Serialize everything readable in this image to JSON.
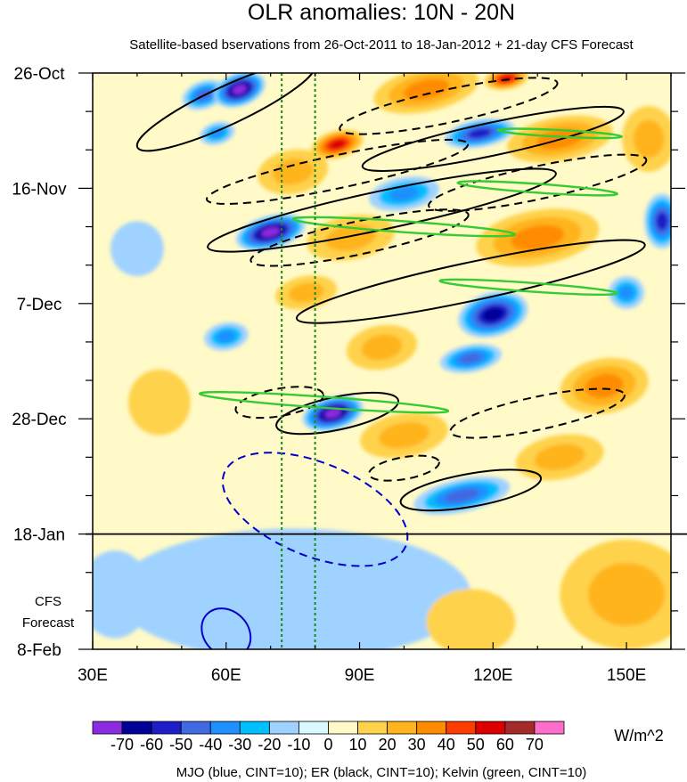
{
  "chart_data": {
    "type": "heatmap",
    "title": "OLR anomalies: 10N - 20N",
    "subtitle": "Satellite-based bservations from 26-Oct-2011 to 18-Jan-2012 + 21-day CFS Forecast",
    "x_ticks": [
      {
        "value": 30,
        "label": "30E"
      },
      {
        "value": 60,
        "label": "60E"
      },
      {
        "value": 90,
        "label": "90E"
      },
      {
        "value": 120,
        "label": "120E"
      },
      {
        "value": 150,
        "label": "150E"
      }
    ],
    "xlim": [
      30,
      160
    ],
    "y_ticks": [
      {
        "day": 0,
        "label": "26-Oct"
      },
      {
        "day": 21,
        "label": "16-Nov"
      },
      {
        "day": 42,
        "label": "7-Dec"
      },
      {
        "day": 63,
        "label": "28-Dec"
      },
      {
        "day": 84,
        "label": "18-Jan"
      },
      {
        "day": 105,
        "label": "8-Feb"
      }
    ],
    "ylim_days": [
      0,
      105
    ],
    "forecast_start_day": 84,
    "forecast_label": [
      "CFS",
      "Forecast"
    ],
    "reference_lines_lon": [
      72.5,
      80
    ],
    "colorbar": {
      "colors": [
        "#8a2be2",
        "#000096",
        "#1e1ec8",
        "#4169e1",
        "#1e90ff",
        "#00bfff",
        "#a0d2ff",
        "#d7f9ff",
        "#fffac8",
        "#ffd24b",
        "#ffb41e",
        "#ff8c00",
        "#ff3c00",
        "#dc0000",
        "#a52a2a",
        "#ff6ecd"
      ],
      "levels": [
        -70,
        -60,
        -50,
        -40,
        -30,
        -20,
        -10,
        0,
        10,
        20,
        30,
        40,
        50,
        60,
        70
      ],
      "unit": "W/m^2"
    },
    "contour_legend": "MJO (blue, CINT=10); ER (black, CINT=10); Kelvin (green, CINT=10)",
    "anomaly_blobs": [
      {
        "lon": 63,
        "day": 3,
        "rl": 6,
        "rd": 3,
        "v": -75,
        "rot": -20
      },
      {
        "lon": 55,
        "day": 4,
        "rl": 5,
        "rd": 2.5,
        "v": -40,
        "rot": -20
      },
      {
        "lon": 58,
        "day": 11,
        "rl": 4,
        "rd": 2,
        "v": -30,
        "rot": -15
      },
      {
        "lon": 70,
        "day": 29,
        "rl": 8,
        "rd": 3,
        "v": -75,
        "rot": -15
      },
      {
        "lon": 84,
        "day": 62,
        "rl": 7,
        "rd": 3,
        "v": -75,
        "rot": -15
      },
      {
        "lon": 117,
        "day": 11,
        "rl": 8,
        "rd": 2.5,
        "v": -50,
        "rot": -10
      },
      {
        "lon": 120,
        "day": 44,
        "rl": 8,
        "rd": 4,
        "v": -60,
        "rot": -15
      },
      {
        "lon": 115,
        "day": 52,
        "rl": 7,
        "rd": 2.5,
        "v": -40,
        "rot": -10
      },
      {
        "lon": 100,
        "day": 22,
        "rl": 8,
        "rd": 3,
        "v": -35,
        "rot": -10
      },
      {
        "lon": 113,
        "day": 77,
        "rl": 11,
        "rd": 3,
        "v": -45,
        "rot": -12
      },
      {
        "lon": 158,
        "day": 27,
        "rl": 4,
        "rd": 5,
        "v": -50,
        "rot": 0
      },
      {
        "lon": 150,
        "day": 40,
        "rl": 4,
        "rd": 3,
        "v": -30,
        "rot": 0
      },
      {
        "lon": 60,
        "day": 48,
        "rl": 5,
        "rd": 2.5,
        "v": -30,
        "rot": -10
      },
      {
        "lon": 40,
        "day": 32,
        "rl": 6,
        "rd": 5,
        "v": -10,
        "rot": 0
      },
      {
        "lon": 75,
        "day": 95,
        "rl": 40,
        "rd": 12,
        "v": -15,
        "rot": 0
      },
      {
        "lon": 35,
        "day": 95,
        "rl": 8,
        "rd": 8,
        "v": -10,
        "rot": 0
      },
      {
        "lon": 85,
        "day": 13,
        "rl": 6,
        "rd": 2.5,
        "v": 50,
        "rot": -15
      },
      {
        "lon": 105,
        "day": 3,
        "rl": 12,
        "rd": 4,
        "v": 35,
        "rot": -12
      },
      {
        "lon": 123,
        "day": 1,
        "rl": 5,
        "rd": 2,
        "v": 50,
        "rot": -10
      },
      {
        "lon": 135,
        "day": 12,
        "rl": 12,
        "rd": 4,
        "v": 30,
        "rot": -10
      },
      {
        "lon": 88,
        "day": 30,
        "rl": 10,
        "rd": 4,
        "v": 25,
        "rot": -10
      },
      {
        "lon": 130,
        "day": 30,
        "rl": 14,
        "rd": 5,
        "v": 30,
        "rot": -10
      },
      {
        "lon": 145,
        "day": 57,
        "rl": 10,
        "rd": 5,
        "v": 30,
        "rot": -10
      },
      {
        "lon": 95,
        "day": 50,
        "rl": 8,
        "rd": 4,
        "v": 25,
        "rot": -10
      },
      {
        "lon": 78,
        "day": 40,
        "rl": 7,
        "rd": 3,
        "v": 25,
        "rot": -10
      },
      {
        "lon": 135,
        "day": 70,
        "rl": 10,
        "rd": 4,
        "v": 20,
        "rot": -10
      },
      {
        "lon": 150,
        "day": 95,
        "rl": 15,
        "rd": 10,
        "v": 20,
        "rot": 0
      },
      {
        "lon": 115,
        "day": 100,
        "rl": 10,
        "rd": 6,
        "v": 15,
        "rot": 0
      },
      {
        "lon": 75,
        "day": 18,
        "rl": 8,
        "rd": 4,
        "v": 20,
        "rot": -10
      },
      {
        "lon": 45,
        "day": 60,
        "rl": 7,
        "rd": 6,
        "v": 12,
        "rot": 0
      },
      {
        "lon": 100,
        "day": 66,
        "rl": 10,
        "rd": 4,
        "v": 20,
        "rot": -10
      },
      {
        "lon": 155,
        "day": 12,
        "rl": 6,
        "rd": 6,
        "v": 25,
        "rot": 0
      }
    ],
    "contours": [
      {
        "type": "MJO",
        "sign": "negative",
        "lon": 80,
        "day": 79.5,
        "rl": 22,
        "rd": 8.5,
        "rot": 22,
        "color": "#0000cc"
      },
      {
        "type": "MJO",
        "sign": "positive",
        "lon": 60,
        "day": 102,
        "rl": 6,
        "rd": 4,
        "rot": 45,
        "color": "#0000cc"
      },
      {
        "type": "ER",
        "sign": "positive",
        "lon": 60,
        "day": 6,
        "rl": 22,
        "rd": 3.5,
        "rot": -25,
        "color": "#000000"
      },
      {
        "type": "ER",
        "sign": "positive",
        "lon": 95,
        "day": 25,
        "rl": 40,
        "rd": 3.5,
        "rot": -12,
        "color": "#000000"
      },
      {
        "type": "ER",
        "sign": "positive",
        "lon": 120,
        "day": 12,
        "rl": 30,
        "rd": 3,
        "rot": -12,
        "color": "#000000"
      },
      {
        "type": "ER",
        "sign": "positive",
        "lon": 115,
        "day": 38,
        "rl": 40,
        "rd": 3.5,
        "rot": -12,
        "color": "#000000"
      },
      {
        "type": "ER",
        "sign": "positive",
        "lon": 85,
        "day": 62,
        "rl": 14,
        "rd": 3,
        "rot": -12,
        "color": "#000000"
      },
      {
        "type": "ER",
        "sign": "positive",
        "lon": 115,
        "day": 76,
        "rl": 16,
        "rd": 3,
        "rot": -10,
        "color": "#000000"
      },
      {
        "type": "ER",
        "sign": "negative",
        "lon": 85,
        "day": 18,
        "rl": 30,
        "rd": 3,
        "rot": -12,
        "color": "#000000"
      },
      {
        "type": "ER",
        "sign": "negative",
        "lon": 110,
        "day": 6,
        "rl": 25,
        "rd": 3,
        "rot": -12,
        "color": "#000000"
      },
      {
        "type": "ER",
        "sign": "negative",
        "lon": 90,
        "day": 30,
        "rl": 25,
        "rd": 3,
        "rot": -12,
        "color": "#000000"
      },
      {
        "type": "ER",
        "sign": "negative",
        "lon": 130,
        "day": 20,
        "rl": 25,
        "rd": 3,
        "rot": -12,
        "color": "#000000"
      },
      {
        "type": "ER",
        "sign": "negative",
        "lon": 72,
        "day": 60,
        "rl": 10,
        "rd": 2.5,
        "rot": -10,
        "color": "#000000"
      },
      {
        "type": "ER",
        "sign": "negative",
        "lon": 130,
        "day": 62,
        "rl": 20,
        "rd": 3,
        "rot": -12,
        "color": "#000000"
      },
      {
        "type": "ER",
        "sign": "negative",
        "lon": 100,
        "day": 72,
        "rl": 8,
        "rd": 2,
        "rot": -10,
        "color": "#000000"
      },
      {
        "type": "Kelvin",
        "sign": "positive",
        "lon": 82,
        "day": 60,
        "rl": 28,
        "rd": 1,
        "rot": 4,
        "color": "#33cc33"
      },
      {
        "type": "Kelvin",
        "sign": "positive",
        "lon": 100,
        "day": 28,
        "rl": 25,
        "rd": 1,
        "rot": 4,
        "color": "#33cc33"
      },
      {
        "type": "Kelvin",
        "sign": "positive",
        "lon": 128,
        "day": 39,
        "rl": 20,
        "rd": 0.8,
        "rot": 4,
        "color": "#33cc33"
      },
      {
        "type": "Kelvin",
        "sign": "positive",
        "lon": 130,
        "day": 21,
        "rl": 18,
        "rd": 0.8,
        "rot": 4,
        "color": "#33cc33"
      },
      {
        "type": "Kelvin",
        "sign": "positive",
        "lon": 135,
        "day": 11,
        "rl": 14,
        "rd": 0.6,
        "rot": 3,
        "color": "#33cc33"
      }
    ]
  }
}
